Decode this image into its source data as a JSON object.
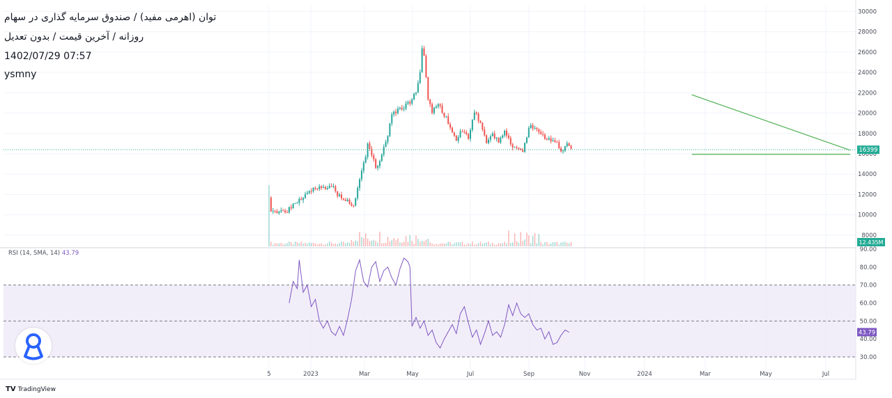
{
  "legend": {
    "line1": "توان (اهرمی مفید) / صندوق سرمایه گذاری در سهام",
    "line2": "روزانه / آخرین قیمت / بدون تعدیل",
    "line3": "1402/07/29 07:57",
    "line4": "ysmny"
  },
  "rsi_title": {
    "label": "RSI (14, SMA, 14)",
    "value": "43.79"
  },
  "branding": {
    "name": "TradingView"
  },
  "colors": {
    "up": "#26a69a",
    "down": "#ef5350",
    "trendline": "#4caf50",
    "rsi": "#7e57c2",
    "rsi_band": "#ede7f6",
    "last_price_badge": "#22ab94",
    "volume_badge": "#22ab94"
  },
  "chart_data": [
    {
      "type": "candlestick",
      "price_axis": {
        "ticks": [
          8000,
          10000,
          12000,
          14000,
          16000,
          18000,
          20000,
          22000,
          24000,
          26000,
          28000,
          30000
        ],
        "range": [
          6900,
          30300
        ]
      },
      "last_price": "16399",
      "volume_label": "12.435M",
      "x_ticks": [
        "5",
        "2023",
        "Mar",
        "May",
        "Jul",
        "Sep",
        "Nov",
        "2024",
        "Mar",
        "May",
        "Jul"
      ],
      "trendlines": [
        {
          "name": "descending resistance",
          "from": [
            75,
            21800
          ],
          "to": [
            254,
            16350
          ]
        },
        {
          "name": "horizontal support",
          "from": [
            75,
            15950
          ],
          "to": [
            254,
            15950
          ]
        }
      ],
      "price_path": [
        [
          0,
          11700
        ],
        [
          1,
          10300
        ],
        [
          6,
          10350
        ],
        [
          10,
          10500
        ],
        [
          14,
          11200
        ],
        [
          20,
          12500
        ],
        [
          26,
          12800
        ],
        [
          32,
          12600
        ],
        [
          36,
          11500
        ],
        [
          40,
          11200
        ],
        [
          42,
          11000
        ],
        [
          44,
          12500
        ],
        [
          47,
          15000
        ],
        [
          49,
          16800
        ],
        [
          53,
          14700
        ],
        [
          55,
          15300
        ],
        [
          59,
          17800
        ],
        [
          61,
          19700
        ],
        [
          64,
          20400
        ],
        [
          67,
          20600
        ],
        [
          71,
          21200
        ],
        [
          73,
          22100
        ],
        [
          75,
          24000
        ],
        [
          76,
          26200
        ],
        [
          77,
          25600
        ],
        [
          78,
          23600
        ],
        [
          79,
          21400
        ],
        [
          81,
          20200
        ],
        [
          84,
          20800
        ],
        [
          87,
          19900
        ],
        [
          90,
          18600
        ],
        [
          93,
          17400
        ],
        [
          96,
          18300
        ],
        [
          99,
          17700
        ],
        [
          102,
          20200
        ],
        [
          105,
          18800
        ],
        [
          108,
          17000
        ],
        [
          111,
          17800
        ],
        [
          114,
          17200
        ],
        [
          117,
          18300
        ],
        [
          120,
          17000
        ],
        [
          124,
          16300
        ],
        [
          126,
          16000
        ],
        [
          127,
          17300
        ],
        [
          130,
          18800
        ],
        [
          133,
          18300
        ],
        [
          136,
          17700
        ],
        [
          139,
          17400
        ],
        [
          143,
          17000
        ],
        [
          146,
          16200
        ],
        [
          148,
          16900
        ],
        [
          150,
          16399
        ]
      ],
      "volume_profile": "low baseline with spikes around Mar-May 2023 and Aug-Sep 2023"
    },
    {
      "type": "line",
      "name": "RSI (14, SMA, 14)",
      "last_value": "43.79",
      "y_axis": {
        "ticks": [
          30.0,
          40.0,
          50.0,
          60.0,
          70.0,
          80.0,
          90.0
        ],
        "range": [
          27,
          90
        ]
      },
      "bands": {
        "upper": 70,
        "middle": 50,
        "lower": 30
      },
      "points": [
        [
          10,
          60
        ],
        [
          12,
          72
        ],
        [
          14,
          68
        ],
        [
          15,
          84
        ],
        [
          17,
          66
        ],
        [
          19,
          70
        ],
        [
          21,
          58
        ],
        [
          23,
          62
        ],
        [
          25,
          50
        ],
        [
          27,
          46
        ],
        [
          29,
          50
        ],
        [
          31,
          44
        ],
        [
          33,
          42
        ],
        [
          35,
          47
        ],
        [
          37,
          42
        ],
        [
          39,
          51
        ],
        [
          41,
          62
        ],
        [
          43,
          78
        ],
        [
          45,
          84
        ],
        [
          47,
          72
        ],
        [
          49,
          69
        ],
        [
          51,
          80
        ],
        [
          53,
          83
        ],
        [
          55,
          72
        ],
        [
          57,
          78
        ],
        [
          59,
          80
        ],
        [
          61,
          74
        ],
        [
          63,
          70
        ],
        [
          65,
          79
        ],
        [
          67,
          85
        ],
        [
          69,
          83
        ],
        [
          70,
          80
        ],
        [
          71,
          47
        ],
        [
          73,
          52
        ],
        [
          75,
          46
        ],
        [
          77,
          50
        ],
        [
          79,
          42
        ],
        [
          81,
          45
        ],
        [
          83,
          38
        ],
        [
          85,
          35
        ],
        [
          87,
          40
        ],
        [
          89,
          44
        ],
        [
          91,
          48
        ],
        [
          93,
          43
        ],
        [
          95,
          54
        ],
        [
          97,
          58
        ],
        [
          99,
          49
        ],
        [
          101,
          41
        ],
        [
          103,
          45
        ],
        [
          105,
          37
        ],
        [
          107,
          43
        ],
        [
          109,
          50
        ],
        [
          111,
          42
        ],
        [
          113,
          44
        ],
        [
          115,
          41
        ],
        [
          117,
          48
        ],
        [
          119,
          59
        ],
        [
          121,
          53
        ],
        [
          123,
          60
        ],
        [
          125,
          54
        ],
        [
          127,
          52
        ],
        [
          129,
          54
        ],
        [
          131,
          48
        ],
        [
          133,
          45
        ],
        [
          135,
          46
        ],
        [
          137,
          40
        ],
        [
          139,
          44
        ],
        [
          141,
          37
        ],
        [
          143,
          38
        ],
        [
          145,
          42
        ],
        [
          147,
          45
        ],
        [
          149,
          43.79
        ]
      ]
    }
  ]
}
